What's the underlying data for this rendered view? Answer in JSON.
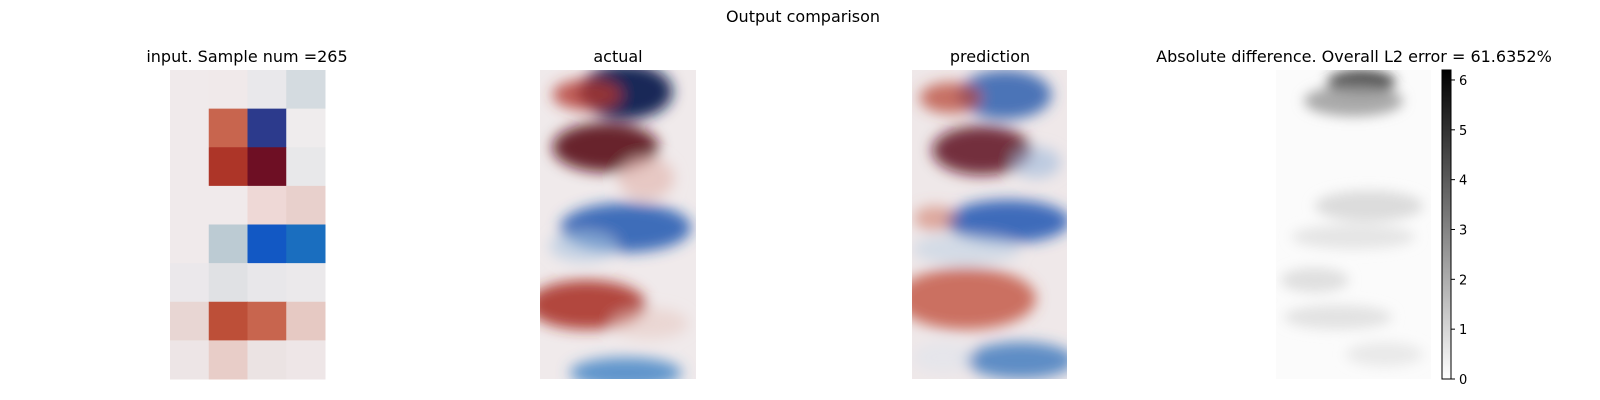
{
  "figure": {
    "suptitle": "Output comparison"
  },
  "chart_data": [
    {
      "type": "heatmap",
      "title": "input. Sample num =265",
      "grid": false,
      "colormap": "diverging red-white-blue",
      "cols": 4,
      "rows": 8,
      "cells": [
        [
          "#f0eaeb",
          "#f0e9ea",
          "#e9e8eb",
          "#d4dbe0"
        ],
        [
          "#f0eaeb",
          "#c8654e",
          "#2c3a8c",
          "#efeced"
        ],
        [
          "#f0eaeb",
          "#ad3528",
          "#6e0f24",
          "#e8e8ea"
        ],
        [
          "#f0eaeb",
          "#f0eaeb",
          "#eed8d6",
          "#e8d0cc"
        ],
        [
          "#f0eaeb",
          "#bccbd3",
          "#1258c4",
          "#1a6ebf"
        ],
        [
          "#ebe8eb",
          "#e0e1e4",
          "#e8e7ea",
          "#ebe9eb"
        ],
        [
          "#e8d6d3",
          "#bd4f38",
          "#c8654e",
          "#e6c9c3"
        ],
        [
          "#ede5e6",
          "#e8cdc8",
          "#ebe3e3",
          "#eee6e7"
        ]
      ]
    },
    {
      "type": "heatmap",
      "title": "actual",
      "grid": false,
      "colormap": "diverging red-white-blue",
      "blobs": [
        {
          "x": 0.55,
          "y": 0.07,
          "rx": 0.3,
          "ry": 0.09,
          "color": "#0b1c4f",
          "strength": 0.95
        },
        {
          "x": 0.3,
          "y": 0.08,
          "rx": 0.22,
          "ry": 0.05,
          "color": "#b33a2e",
          "strength": 0.8
        },
        {
          "x": 0.42,
          "y": 0.25,
          "rx": 0.34,
          "ry": 0.08,
          "color": "#5a0d1a",
          "strength": 0.9
        },
        {
          "x": 0.68,
          "y": 0.35,
          "rx": 0.18,
          "ry": 0.07,
          "color": "#e2b9b2",
          "strength": 0.7
        },
        {
          "x": 0.55,
          "y": 0.51,
          "rx": 0.42,
          "ry": 0.08,
          "color": "#1f58b0",
          "strength": 0.85
        },
        {
          "x": 0.28,
          "y": 0.57,
          "rx": 0.22,
          "ry": 0.05,
          "color": "#a9c3df",
          "strength": 0.6
        },
        {
          "x": 0.3,
          "y": 0.76,
          "rx": 0.38,
          "ry": 0.08,
          "color": "#a72a22",
          "strength": 0.85
        },
        {
          "x": 0.7,
          "y": 0.82,
          "rx": 0.25,
          "ry": 0.05,
          "color": "#e5c3bc",
          "strength": 0.5
        },
        {
          "x": 0.55,
          "y": 0.98,
          "rx": 0.36,
          "ry": 0.05,
          "color": "#3c7fc4",
          "strength": 0.8
        }
      ]
    },
    {
      "type": "heatmap",
      "title": "prediction",
      "grid": false,
      "colormap": "diverging red-white-blue",
      "blobs": [
        {
          "x": 0.6,
          "y": 0.08,
          "rx": 0.3,
          "ry": 0.08,
          "color": "#2f5fae",
          "strength": 0.85
        },
        {
          "x": 0.25,
          "y": 0.09,
          "rx": 0.2,
          "ry": 0.05,
          "color": "#b84535",
          "strength": 0.75
        },
        {
          "x": 0.45,
          "y": 0.26,
          "rx": 0.32,
          "ry": 0.08,
          "color": "#5e0f1d",
          "strength": 0.85
        },
        {
          "x": 0.8,
          "y": 0.3,
          "rx": 0.16,
          "ry": 0.05,
          "color": "#9db8da",
          "strength": 0.6
        },
        {
          "x": 0.62,
          "y": 0.49,
          "rx": 0.4,
          "ry": 0.07,
          "color": "#2056b3",
          "strength": 0.85
        },
        {
          "x": 0.15,
          "y": 0.48,
          "rx": 0.14,
          "ry": 0.04,
          "color": "#d07a68",
          "strength": 0.6
        },
        {
          "x": 0.35,
          "y": 0.58,
          "rx": 0.35,
          "ry": 0.05,
          "color": "#bcd0e4",
          "strength": 0.55
        },
        {
          "x": 0.35,
          "y": 0.74,
          "rx": 0.45,
          "ry": 0.1,
          "color": "#c2523d",
          "strength": 0.8
        },
        {
          "x": 0.7,
          "y": 0.94,
          "rx": 0.35,
          "ry": 0.06,
          "color": "#2e6fba",
          "strength": 0.75
        },
        {
          "x": 0.2,
          "y": 0.93,
          "rx": 0.2,
          "ry": 0.05,
          "color": "#d8e2ee",
          "strength": 0.4
        }
      ]
    },
    {
      "type": "heatmap",
      "title": "Absolute difference. Overall L2 error = 61.6352%",
      "grid": false,
      "colormap": "gray (white to black)",
      "colorbar": {
        "min": 0,
        "max": 6.2,
        "ticks": [
          0,
          1,
          2,
          3,
          4,
          5,
          6
        ],
        "tick_labels": [
          "0",
          "1",
          "2",
          "3",
          "4",
          "5",
          "6"
        ]
      },
      "blobs": [
        {
          "x": 0.55,
          "y": 0.04,
          "rx": 0.22,
          "ry": 0.04,
          "value": 5.2
        },
        {
          "x": 0.5,
          "y": 0.1,
          "rx": 0.32,
          "ry": 0.05,
          "value": 2.4
        },
        {
          "x": 0.6,
          "y": 0.44,
          "rx": 0.35,
          "ry": 0.05,
          "value": 1.0
        },
        {
          "x": 0.5,
          "y": 0.54,
          "rx": 0.4,
          "ry": 0.04,
          "value": 0.7
        },
        {
          "x": 0.25,
          "y": 0.68,
          "rx": 0.22,
          "ry": 0.04,
          "value": 0.9
        },
        {
          "x": 0.4,
          "y": 0.8,
          "rx": 0.35,
          "ry": 0.04,
          "value": 0.8
        },
        {
          "x": 0.7,
          "y": 0.92,
          "rx": 0.25,
          "ry": 0.04,
          "value": 0.6
        }
      ]
    }
  ]
}
